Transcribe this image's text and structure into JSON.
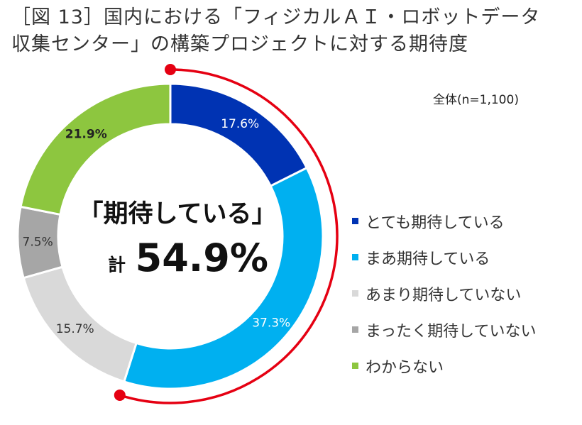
{
  "title": {
    "line1": "［図 13］国内における「フィジカルＡＩ・ロボットデータ",
    "line2": "収集センター」の構築プロジェクトに対する期待度"
  },
  "note": "全体(n=1,100)",
  "center": {
    "line1": "「期待している」",
    "prefix": "計",
    "value": "54.9%"
  },
  "chart_data": {
    "type": "pie",
    "variant": "donut",
    "title": "［図 13］国内における「フィジカルＡＩ・ロボットデータ収集センター」の構築プロジェクトに対する期待度",
    "unit": "%",
    "categories": [
      "とても期待している",
      "まあ期待している",
      "あまり期待していない",
      "まったく期待していない",
      "わからない"
    ],
    "values": [
      17.6,
      37.3,
      15.7,
      7.5,
      21.9
    ],
    "labels": [
      "17.6%",
      "37.3%",
      "15.7%",
      "7.5%",
      "21.9%"
    ],
    "colors": [
      "#0033b3",
      "#00b0f0",
      "#d9d9d9",
      "#a6a6a6",
      "#8dc63f"
    ],
    "label_colors": [
      "#ffffff",
      "#ffffff",
      "#333333",
      "#333333",
      "#222222"
    ],
    "highlight_arc": {
      "series": [
        "とても期待している",
        "まあ期待している"
      ],
      "color": "#e50012"
    },
    "legend": "right"
  }
}
